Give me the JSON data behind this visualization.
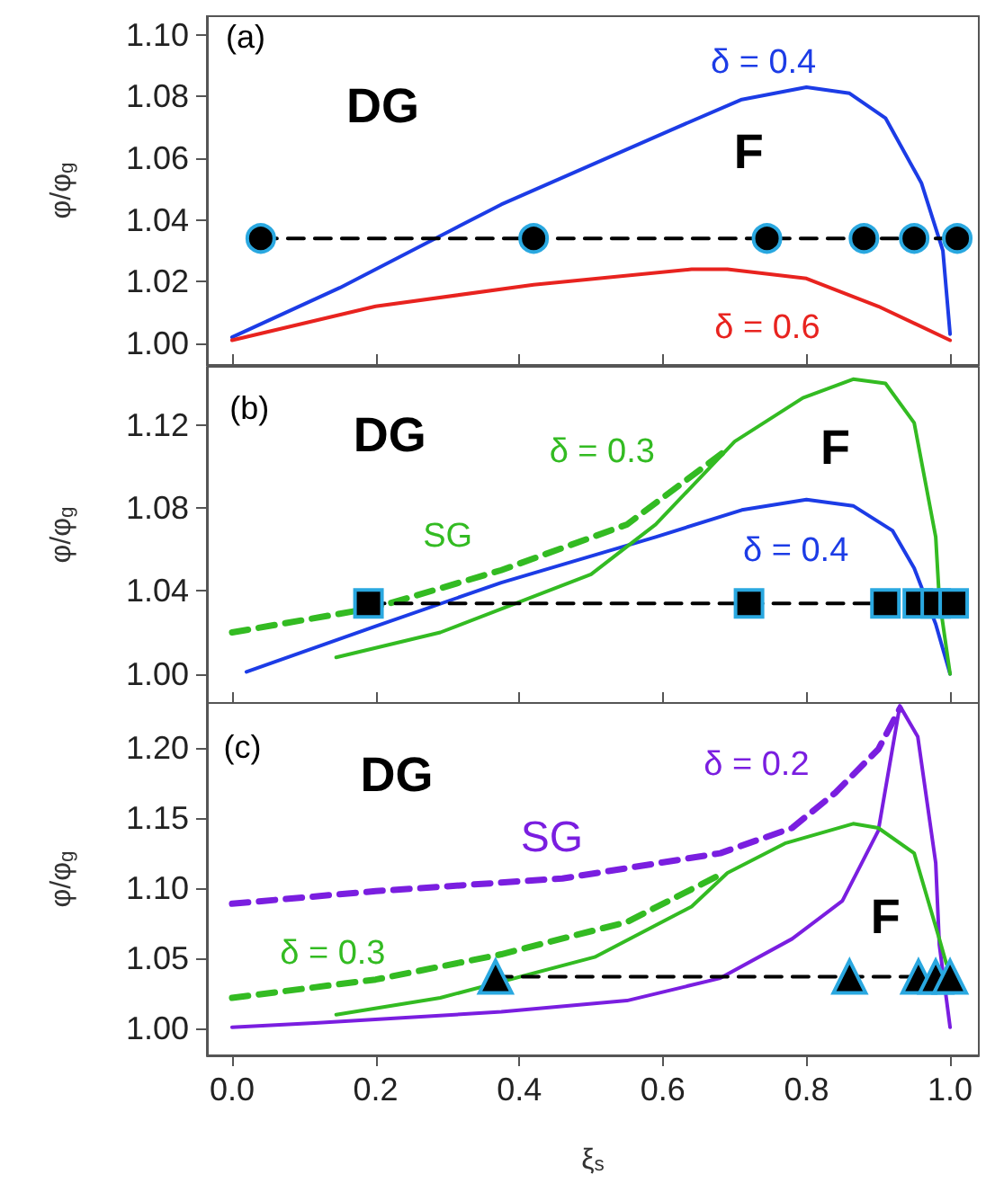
{
  "chart_data": [
    {
      "type": "line",
      "ylabel": "φ/φ$_{g}$",
      "xlim": [
        -0.035,
        1.04
      ],
      "ylim": [
        0.993,
        1.106
      ],
      "xticks": [
        0,
        0.2,
        0.4,
        0.6,
        0.8,
        1
      ],
      "yticks": [
        {
          "value": 1,
          "label": "1.00"
        },
        {
          "value": 1.02,
          "label": "1.02"
        },
        {
          "value": 1.04,
          "label": "1.04"
        },
        {
          "value": 1.06,
          "label": "1.06"
        },
        {
          "value": 1.08,
          "label": "1.08"
        },
        {
          "value": 1.1,
          "label": "1.10"
        }
      ],
      "tick_labels": "y",
      "grid": false,
      "marker": "none",
      "line_style": "solid",
      "series": [
        {
          "color": "#1c3ce6",
          "x": [
            0,
            0.15,
            0.375,
            0.61,
            0.71,
            0.8,
            0.86,
            0.91,
            0.96,
            0.99,
            1.0
          ],
          "values": [
            1.002,
            1.018,
            1.045,
            1.069,
            1.079,
            1.083,
            1.081,
            1.073,
            1.052,
            1.03,
            1.003
          ]
        },
        {
          "color": "#e8231f",
          "x": [
            0,
            0.2,
            0.42,
            0.64,
            0.69,
            0.8,
            0.9,
            1.0
          ],
          "values": [
            1.001,
            1.012,
            1.019,
            1.024,
            1.024,
            1.021,
            1.012,
            1.001
          ]
        },
        {
          "color": "#000000",
          "marker": "circle",
          "line_style": "dashed",
          "x": [
            0.04,
            0.42,
            0.745,
            0.88,
            0.95,
            1.01
          ],
          "values": [
            1.034,
            1.034,
            1.034,
            1.034,
            1.034,
            1.034
          ]
        }
      ],
      "annotations": [
        "(a)",
        "DG",
        "F",
        "δ = 0.4",
        "δ = 0.6"
      ]
    },
    {
      "type": "line",
      "ylabel": "φ/φ$_{g}$",
      "xlim": [
        -0.035,
        1.04
      ],
      "ylim": [
        0.986,
        1.148
      ],
      "xticks": [
        0,
        0.2,
        0.4,
        0.6,
        0.8,
        1
      ],
      "yticks": [
        {
          "value": 1,
          "label": "1.00"
        },
        {
          "value": 1.04,
          "label": "1.04"
        },
        {
          "value": 1.08,
          "label": "1.08"
        },
        {
          "value": 1.12,
          "label": "1.12"
        }
      ],
      "tick_labels": "y",
      "grid": false,
      "marker": "none",
      "line_style": "solid",
      "series": [
        {
          "color": "#1c3ce6",
          "x": [
            0.02,
            0.2,
            0.375,
            0.59,
            0.71,
            0.8,
            0.865,
            0.92,
            0.95,
            0.98,
            1.0
          ],
          "values": [
            1.001,
            1.023,
            1.044,
            1.066,
            1.079,
            1.084,
            1.081,
            1.069,
            1.051,
            1.024,
            1.0
          ]
        },
        {
          "color": "#33bb22",
          "x": [
            0.145,
            0.29,
            0.5,
            0.59,
            0.7,
            0.795,
            0.865,
            0.91,
            0.95,
            0.98,
            0.985,
            1.0
          ],
          "values": [
            1.008,
            1.02,
            1.048,
            1.072,
            1.112,
            1.133,
            1.142,
            1.14,
            1.121,
            1.066,
            1.036,
            1.0
          ]
        },
        {
          "color": "#33bb22",
          "line_style": "dashed",
          "x": [
            0,
            0.2,
            0.375,
            0.55,
            0.685
          ],
          "values": [
            1.02,
            1.032,
            1.05,
            1.072,
            1.107
          ]
        },
        {
          "color": "#000000",
          "marker": "square",
          "line_style": "dashed",
          "x": [
            0.19,
            0.72,
            0.91,
            0.955,
            0.98,
            1.005
          ],
          "values": [
            1.034,
            1.034,
            1.034,
            1.034,
            1.034,
            1.034
          ]
        }
      ],
      "annotations": [
        "(b)",
        "DG",
        "F",
        "δ = 0.3",
        "SG",
        "δ = 0.4"
      ]
    },
    {
      "type": "line",
      "xlabel": "ξ$_{s}$",
      "ylabel": "φ/φ$_{g}$",
      "xlim": [
        -0.035,
        1.04
      ],
      "ylim": [
        0.981,
        1.232
      ],
      "xticks": [
        {
          "value": 0,
          "label": "0.0"
        },
        {
          "value": 0.2,
          "label": "0.2"
        },
        {
          "value": 0.4,
          "label": "0.4"
        },
        {
          "value": 0.6,
          "label": "0.6"
        },
        {
          "value": 0.8,
          "label": "0.8"
        },
        {
          "value": 1,
          "label": "1.0"
        }
      ],
      "yticks": [
        {
          "value": 1,
          "label": "1.00"
        },
        {
          "value": 1.05,
          "label": "1.05"
        },
        {
          "value": 1.1,
          "label": "1.10"
        },
        {
          "value": 1.15,
          "label": "1.15"
        },
        {
          "value": 1.2,
          "label": "1.20"
        }
      ],
      "grid": false,
      "marker": "none",
      "line_style": "solid",
      "series": [
        {
          "color": "#7a1ee0",
          "x": [
            0,
            0.115,
            0.375,
            0.55,
            0.68,
            0.78,
            0.85,
            0.9,
            0.93,
            0.955,
            0.98,
            0.985,
            1.0
          ],
          "values": [
            1.001,
            1.004,
            1.012,
            1.02,
            1.036,
            1.064,
            1.091,
            1.141,
            1.23,
            1.208,
            1.118,
            1.06,
            1.001
          ]
        },
        {
          "color": "#7a1ee0",
          "line_style": "dashed",
          "x": [
            0,
            0.2,
            0.46,
            0.68,
            0.78,
            0.84,
            0.9,
            0.93
          ],
          "values": [
            1.089,
            1.098,
            1.107,
            1.125,
            1.143,
            1.168,
            1.199,
            1.228
          ]
        },
        {
          "color": "#33bb22",
          "x": [
            0.145,
            0.29,
            0.505,
            0.64,
            0.69,
            0.77,
            0.865,
            0.9,
            0.95,
            0.985,
            0.995
          ],
          "values": [
            1.01,
            1.022,
            1.051,
            1.087,
            1.111,
            1.132,
            1.146,
            1.143,
            1.125,
            1.064,
            1.046
          ]
        },
        {
          "color": "#33bb22",
          "line_style": "dashed",
          "x": [
            0,
            0.2,
            0.375,
            0.55,
            0.685
          ],
          "values": [
            1.022,
            1.035,
            1.053,
            1.076,
            1.111
          ]
        },
        {
          "color": "#000000",
          "marker": "triangle",
          "line_style": "dashed",
          "x": [
            0.367,
            0.86,
            0.956,
            0.98,
            1.0
          ],
          "values": [
            1.037,
            1.037,
            1.037,
            1.037,
            1.037
          ]
        }
      ],
      "annotations": [
        "(c)",
        "DG",
        "SG",
        "δ = 0.2",
        "F",
        "δ = 0.3"
      ]
    }
  ]
}
